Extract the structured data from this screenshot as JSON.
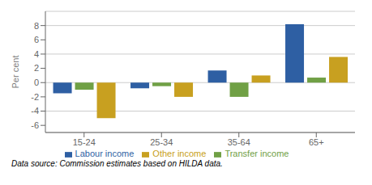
{
  "chart_data": {
    "type": "bar",
    "categories": [
      "15-24",
      "25-34",
      "35-64",
      "65+"
    ],
    "series": [
      {
        "name": "Labour income",
        "color": "#2E5FA3",
        "values": [
          -1.5,
          -0.8,
          1.7,
          8.2
        ]
      },
      {
        "name": "Transfer income",
        "color": "#70A045",
        "values": [
          -1.0,
          -0.5,
          -2.0,
          0.7
        ]
      },
      {
        "name": "Other income",
        "color": "#C8A020",
        "values": [
          -5.0,
          -2.0,
          1.0,
          3.6
        ]
      }
    ],
    "ylabel": "Per cent",
    "ylim": [
      -7,
      10
    ],
    "yticks": [
      -6,
      -4,
      -2,
      0,
      2,
      4,
      6,
      8
    ],
    "grid": true,
    "legend": "bottom",
    "annotations": [
      "Data source: Commission estimates based on HILDA data."
    ]
  }
}
